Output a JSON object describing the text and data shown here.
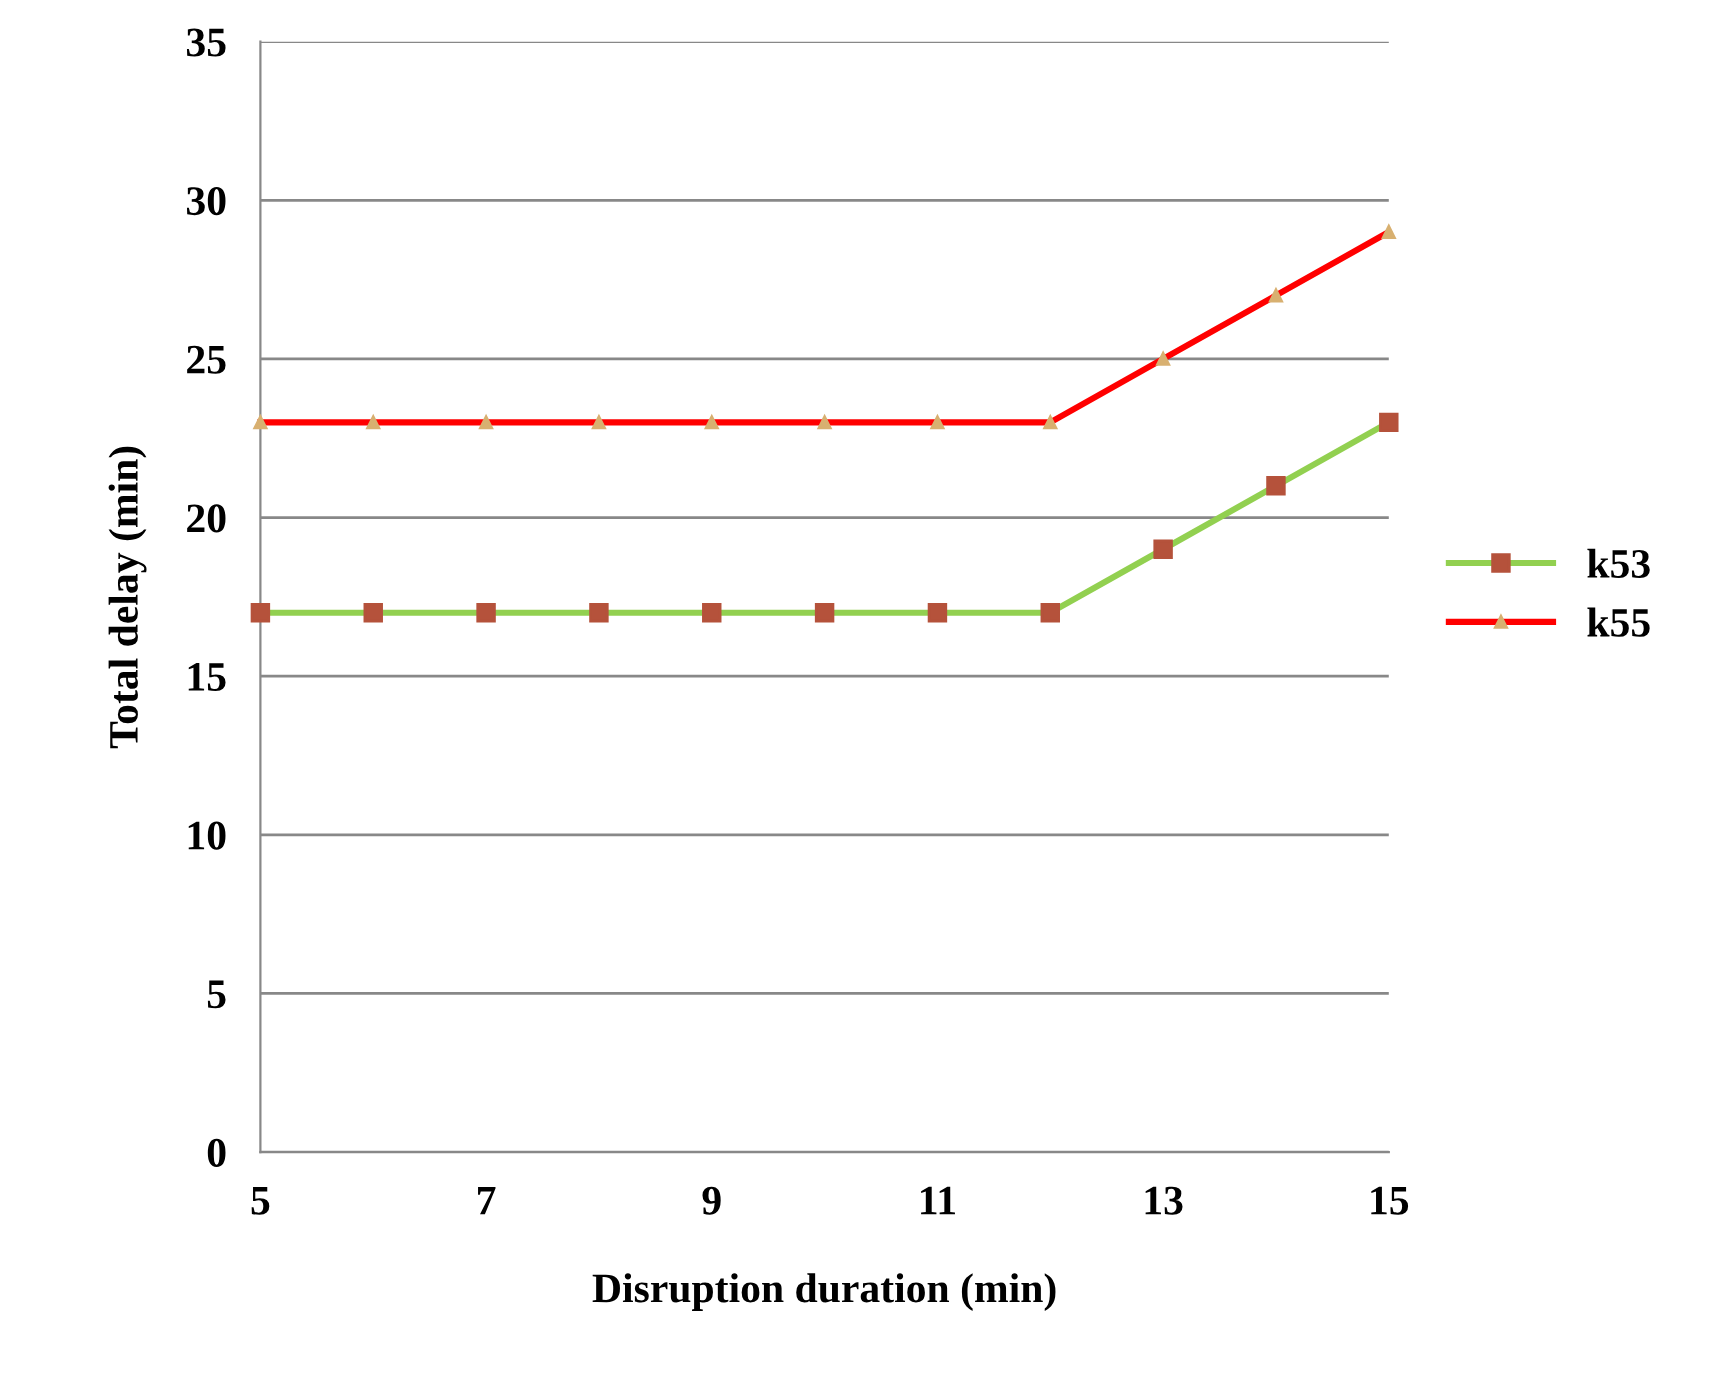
{
  "chart_data": {
    "type": "line",
    "xlabel": "Disruption duration (min)",
    "ylabel": "Total delay (min)",
    "x": [
      5,
      6,
      7,
      8,
      9,
      10,
      11,
      12,
      13,
      14,
      15
    ],
    "series": [
      {
        "name": "k53",
        "color": "#92d050",
        "marker": "square",
        "values": [
          17,
          17,
          17,
          17,
          17,
          17,
          17,
          17,
          19,
          21,
          23
        ]
      },
      {
        "name": "k55",
        "color": "#ff0000",
        "marker": "triangle",
        "values": [
          23,
          23,
          23,
          23,
          23,
          23,
          23,
          23,
          25,
          27,
          29
        ]
      }
    ],
    "xlim": [
      5,
      15
    ],
    "xticks": [
      5,
      7,
      9,
      11,
      13,
      15
    ],
    "ylim": [
      0,
      35
    ],
    "yticks": [
      0,
      5,
      10,
      15,
      20,
      25,
      30,
      35
    ],
    "grid": "y",
    "legend": "right",
    "line_style": "solid"
  }
}
